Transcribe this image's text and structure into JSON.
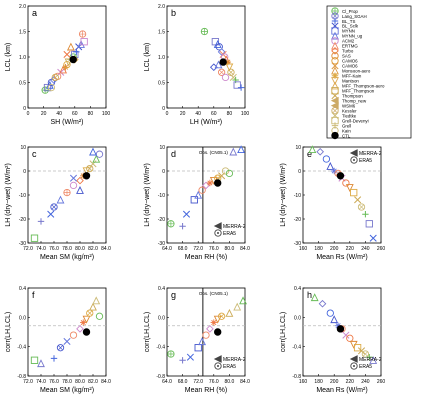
{
  "legend": {
    "entries": [
      {
        "label": "Cl_Prop",
        "symbol": "circle-plus",
        "color": "#66bb55"
      },
      {
        "label": "Lang_SGAH",
        "symbol": "circle-x",
        "color": "#7777cc"
      },
      {
        "label": "BL_TS",
        "symbol": "plus",
        "color": "#4466dd"
      },
      {
        "label": "BL_Sclk",
        "symbol": "x",
        "color": "#4455cc"
      },
      {
        "label": "MYNN",
        "symbol": "square",
        "color": "#6677dd"
      },
      {
        "label": "MYNN_ug",
        "symbol": "triangle",
        "color": "#6677dd"
      },
      {
        "label": "ACM2",
        "symbol": "circle",
        "color": "#cc88cc"
      },
      {
        "label": "ERTMG",
        "symbol": "triangle",
        "color": "#ee8866"
      },
      {
        "label": "Turbo",
        "symbol": "diamond",
        "color": "#ee7744"
      },
      {
        "label": "SAS",
        "symbol": "circle",
        "color": "#dd8833"
      },
      {
        "label": "CAMO6",
        "symbol": "circle",
        "color": "#dd9933"
      },
      {
        "label": "CAMO6",
        "symbol": "x",
        "color": "#dd9944"
      },
      {
        "label": "Monsoon-aero",
        "symbol": "triangle",
        "color": "#dd9944"
      },
      {
        "label": "MFF-Kain",
        "symbol": "star",
        "color": "#ddaa44"
      },
      {
        "label": "Mantson",
        "symbol": "triangle-down",
        "color": "#ddaa55"
      },
      {
        "label": "MFF_Thompson-aero",
        "symbol": "triangle",
        "color": "#ddaa55"
      },
      {
        "label": "MFF_Thompson",
        "symbol": "square",
        "color": "#ccaa55"
      },
      {
        "label": "Thompson",
        "symbol": "x",
        "color": "#ccaa55"
      },
      {
        "label": "Thomp_new",
        "symbol": "triangle-left",
        "color": "#ccaa66"
      },
      {
        "label": "WSM6",
        "symbol": "triangle-left",
        "color": "#ccaa66"
      },
      {
        "label": "Kessler",
        "symbol": "circle-x",
        "color": "#ccaa66"
      },
      {
        "label": "Tiedtke",
        "symbol": "x",
        "color": "#ccbb77"
      },
      {
        "label": "Grell-Devenyi",
        "symbol": "square",
        "color": "#ccbb77"
      },
      {
        "label": "Grell",
        "symbol": "plus",
        "color": "#ccbb77"
      },
      {
        "label": "Kain",
        "symbol": "circle",
        "color": "#ccbb77"
      },
      {
        "label": "CTL",
        "symbol": "dot",
        "color": "#000000"
      }
    ]
  },
  "panel_legends": {
    "de": {
      "items": [
        {
          "label": "MERRA-2",
          "symbol": "triangle-left"
        },
        {
          "label": "ERA5",
          "symbol": "circle-dot"
        }
      ]
    },
    "e": {
      "items": [
        {
          "label": "MERRA-2",
          "symbol": "triangle-left"
        },
        {
          "label": "ERA5",
          "symbol": "circle-dot"
        }
      ]
    },
    "gh": {
      "items": [
        {
          "label": "MERRA-2",
          "symbol": "triangle-left"
        },
        {
          "label": "ERA5",
          "symbol": "circle-dot"
        }
      ]
    }
  },
  "obs_text": "Obs. (CN05.1)",
  "chart_data": [
    {
      "panel": "a",
      "type": "scatter",
      "xlabel": "SH (W/m²)",
      "ylabel": "LCL (km)",
      "xlim": [
        0,
        100
      ],
      "ylim": [
        0,
        2
      ],
      "xticks": [
        "0",
        "20",
        "40",
        "60",
        "80",
        "100"
      ],
      "yticks": [
        "0",
        "0.5",
        "1.0",
        "1.5",
        "2.0"
      ],
      "points": [
        [
          22,
          0.35,
          "circle-plus"
        ],
        [
          25,
          0.4,
          "square"
        ],
        [
          28,
          0.45,
          "triangle"
        ],
        [
          30,
          0.5,
          "circle"
        ],
        [
          33,
          0.55,
          "diamond"
        ],
        [
          38,
          0.62,
          "circle"
        ],
        [
          42,
          0.7,
          "x"
        ],
        [
          45,
          0.75,
          "triangle"
        ],
        [
          48,
          0.8,
          "star"
        ],
        [
          50,
          0.85,
          "circle"
        ],
        [
          52,
          0.9,
          "triangle-down"
        ],
        [
          55,
          0.95,
          "triangle-left"
        ],
        [
          58,
          1.0,
          "circle-x"
        ],
        [
          60,
          1.05,
          "square"
        ],
        [
          62,
          1.1,
          "plus"
        ],
        [
          65,
          1.2,
          "x"
        ],
        [
          68,
          1.25,
          "triangle"
        ],
        [
          70,
          1.45,
          "circle-plus"
        ],
        [
          72,
          1.3,
          "square"
        ],
        [
          50,
          1.05,
          "x"
        ],
        [
          55,
          1.2,
          "triangle"
        ],
        [
          60,
          0.95,
          "diamond"
        ],
        [
          35,
          0.6,
          "circle-x"
        ],
        [
          30,
          0.4,
          "circle"
        ],
        [
          58,
          0.95,
          "dot"
        ]
      ]
    },
    {
      "panel": "b",
      "type": "scatter",
      "xlabel": "LH (W/m²)",
      "ylabel": "LCL (km)",
      "xlim": [
        0,
        100
      ],
      "ylim": [
        0,
        2
      ],
      "xticks": [
        "0",
        "20",
        "40",
        "60",
        "80",
        "100"
      ],
      "yticks": [
        "0",
        "0.5",
        "1.0",
        "1.5",
        "2.0"
      ],
      "points": [
        [
          48,
          1.5,
          "circle-plus"
        ],
        [
          62,
          1.3,
          "square"
        ],
        [
          65,
          1.25,
          "triangle"
        ],
        [
          67,
          1.2,
          "circle"
        ],
        [
          70,
          1.1,
          "diamond"
        ],
        [
          72,
          1.05,
          "x"
        ],
        [
          74,
          1.0,
          "circle"
        ],
        [
          76,
          0.95,
          "triangle"
        ],
        [
          78,
          0.9,
          "star"
        ],
        [
          80,
          0.8,
          "triangle-down"
        ],
        [
          82,
          0.7,
          "circle-x"
        ],
        [
          85,
          0.6,
          "x"
        ],
        [
          88,
          0.55,
          "plus"
        ],
        [
          90,
          0.45,
          "square"
        ],
        [
          95,
          0.4,
          "plus"
        ],
        [
          60,
          0.8,
          "diamond"
        ],
        [
          66,
          0.85,
          "triangle"
        ],
        [
          70,
          0.7,
          "circle-x"
        ],
        [
          75,
          0.6,
          "circle"
        ],
        [
          72,
          0.9,
          "dot"
        ]
      ]
    },
    {
      "panel": "c",
      "type": "scatter",
      "xlabel": "Mean SM (kg/m²)",
      "ylabel": "LH (dry−wet) (W/m²)",
      "xlim": [
        72,
        84
      ],
      "ylim": [
        -30,
        10
      ],
      "xticks": [
        "72.0",
        "74.0",
        "76.0",
        "78.0",
        "80.0",
        "82.0",
        "84.0"
      ],
      "yticks": [
        "-30",
        "-20",
        "-10",
        "0",
        "10"
      ],
      "points": [
        [
          73,
          -28,
          "square"
        ],
        [
          74,
          -21,
          "plus"
        ],
        [
          75.5,
          -18,
          "x"
        ],
        [
          76,
          -15,
          "circle-x"
        ],
        [
          77,
          -12,
          "triangle"
        ],
        [
          78,
          -9,
          "circle-plus"
        ],
        [
          79,
          -6,
          "circle"
        ],
        [
          80,
          -4,
          "diamond"
        ],
        [
          80.5,
          -2,
          "star"
        ],
        [
          81,
          0,
          "triangle-down"
        ],
        [
          81.5,
          1,
          "circle-x"
        ],
        [
          82,
          3,
          "x"
        ],
        [
          82.5,
          5,
          "triangle"
        ],
        [
          83,
          7,
          "circle"
        ],
        [
          82,
          8,
          "triangle"
        ],
        [
          80,
          -8,
          "triangle"
        ],
        [
          79,
          -3,
          "x"
        ],
        [
          81,
          -2,
          "dot"
        ]
      ]
    },
    {
      "panel": "d",
      "type": "scatter",
      "xlabel": "Mean RH (%)",
      "ylabel": "LH (dry−wet) (W/m²)",
      "xlim": [
        64,
        84
      ],
      "ylim": [
        -30,
        10
      ],
      "xticks": [
        "64.0",
        "68.0",
        "72.0",
        "76.0",
        "80.0",
        "84.0"
      ],
      "yticks": [
        "-30",
        "-20",
        "-10",
        "0",
        "10"
      ],
      "points": [
        [
          65,
          -22,
          "circle-plus"
        ],
        [
          68,
          -23,
          "plus"
        ],
        [
          69,
          -18,
          "x"
        ],
        [
          71,
          -12,
          "square"
        ],
        [
          72,
          -10,
          "triangle"
        ],
        [
          73,
          -8,
          "circle"
        ],
        [
          74,
          -6,
          "diamond"
        ],
        [
          75,
          -5,
          "star"
        ],
        [
          76,
          -4,
          "triangle-down"
        ],
        [
          77,
          -3,
          "circle-x"
        ],
        [
          78,
          -2,
          "x"
        ],
        [
          79,
          0,
          "circle"
        ],
        [
          80,
          -1,
          "circle"
        ],
        [
          81,
          8,
          "triangle"
        ],
        [
          83,
          9,
          "triangle"
        ],
        [
          77,
          -5,
          "dot"
        ]
      ]
    },
    {
      "panel": "e",
      "type": "scatter",
      "xlabel": "Mean Rs (W/m²)",
      "ylabel": "LH (dry−wet) (W/m²)",
      "xlim": [
        160,
        260
      ],
      "ylim": [
        -30,
        10
      ],
      "xticks": [
        "160",
        "180",
        "200",
        "220",
        "240",
        "260"
      ],
      "yticks": [
        "-30",
        "-20",
        "-10",
        "0",
        "10"
      ],
      "points": [
        [
          172,
          9,
          "triangle"
        ],
        [
          182,
          8,
          "diamond"
        ],
        [
          190,
          5,
          "circle"
        ],
        [
          195,
          2,
          "triangle"
        ],
        [
          200,
          0,
          "star"
        ],
        [
          205,
          -1,
          "circle-x"
        ],
        [
          210,
          -3,
          "x"
        ],
        [
          215,
          -5,
          "circle"
        ],
        [
          220,
          -7,
          "triangle-down"
        ],
        [
          225,
          -9,
          "square"
        ],
        [
          230,
          -12,
          "x"
        ],
        [
          235,
          -15,
          "circle-x"
        ],
        [
          240,
          -18,
          "plus"
        ],
        [
          245,
          -22,
          "square"
        ],
        [
          250,
          -28,
          "x"
        ],
        [
          208,
          -2,
          "dot"
        ]
      ]
    },
    {
      "panel": "f",
      "type": "scatter",
      "xlabel": "Mean SM (kg/m²)",
      "ylabel": "corr(LH,LCL)",
      "xlim": [
        72,
        84
      ],
      "ylim": [
        -0.8,
        0.6
      ],
      "xticks": [
        "72.0",
        "74.0",
        "76.0",
        "78.0",
        "80.0",
        "82.0",
        "84.0"
      ],
      "yticks": [
        "-0.8",
        "-0.4",
        "0.0",
        "0.4"
      ],
      "points": [
        [
          73,
          -0.55,
          "square"
        ],
        [
          74,
          -0.6,
          "triangle"
        ],
        [
          76,
          -0.52,
          "plus"
        ],
        [
          77,
          -0.35,
          "circle-x"
        ],
        [
          78,
          -0.25,
          "x"
        ],
        [
          79,
          -0.15,
          "circle"
        ],
        [
          80,
          -0.05,
          "diamond"
        ],
        [
          80.5,
          0.05,
          "star"
        ],
        [
          81,
          0.1,
          "triangle-down"
        ],
        [
          81.5,
          0.2,
          "circle-x"
        ],
        [
          82,
          0.3,
          "triangle"
        ],
        [
          82.5,
          0.4,
          "triangle"
        ],
        [
          83,
          0.15,
          "circle"
        ],
        [
          81,
          -0.1,
          "dot"
        ]
      ]
    },
    {
      "panel": "g",
      "type": "scatter",
      "xlabel": "Mean RH (%)",
      "ylabel": "corr(LH,LCL)",
      "xlim": [
        64,
        84
      ],
      "ylim": [
        -0.8,
        0.6
      ],
      "xticks": [
        "64.0",
        "68.0",
        "72.0",
        "76.0",
        "80.0",
        "84.0"
      ],
      "yticks": [
        "-0.8",
        "-0.4",
        "0.0",
        "0.4"
      ],
      "points": [
        [
          65,
          -0.45,
          "circle-plus"
        ],
        [
          68,
          -0.55,
          "plus"
        ],
        [
          70,
          -0.5,
          "x"
        ],
        [
          72,
          -0.35,
          "square"
        ],
        [
          73,
          -0.25,
          "triangle"
        ],
        [
          74,
          -0.15,
          "circle"
        ],
        [
          75,
          -0.05,
          "diamond"
        ],
        [
          76,
          0.05,
          "star"
        ],
        [
          77,
          0.1,
          "triangle-down"
        ],
        [
          78,
          0.15,
          "circle-x"
        ],
        [
          80,
          0.2,
          "triangle"
        ],
        [
          82,
          0.3,
          "triangle"
        ],
        [
          83.5,
          0.4,
          "triangle"
        ],
        [
          77,
          -0.1,
          "dot"
        ]
      ]
    },
    {
      "panel": "h",
      "type": "scatter",
      "xlabel": "Mean Rs (W/m²)",
      "ylabel": "corr(LH,LCL)",
      "xlim": [
        160,
        260
      ],
      "ylim": [
        -0.8,
        0.6
      ],
      "xticks": [
        "160",
        "180",
        "200",
        "220",
        "240",
        "260"
      ],
      "yticks": [
        "-0.8",
        "-0.4",
        "0.0",
        "0.4"
      ],
      "points": [
        [
          175,
          0.45,
          "triangle"
        ],
        [
          185,
          0.35,
          "diamond"
        ],
        [
          195,
          0.2,
          "circle"
        ],
        [
          200,
          0.1,
          "triangle"
        ],
        [
          205,
          0.0,
          "star"
        ],
        [
          210,
          -0.05,
          "circle-x"
        ],
        [
          215,
          -0.15,
          "x"
        ],
        [
          220,
          -0.2,
          "circle"
        ],
        [
          225,
          -0.3,
          "triangle-down"
        ],
        [
          230,
          -0.35,
          "square"
        ],
        [
          235,
          -0.4,
          "x"
        ],
        [
          240,
          -0.45,
          "circle-x"
        ],
        [
          245,
          -0.5,
          "plus"
        ],
        [
          250,
          -0.55,
          "triangle"
        ],
        [
          208,
          -0.05,
          "dot"
        ]
      ]
    }
  ]
}
